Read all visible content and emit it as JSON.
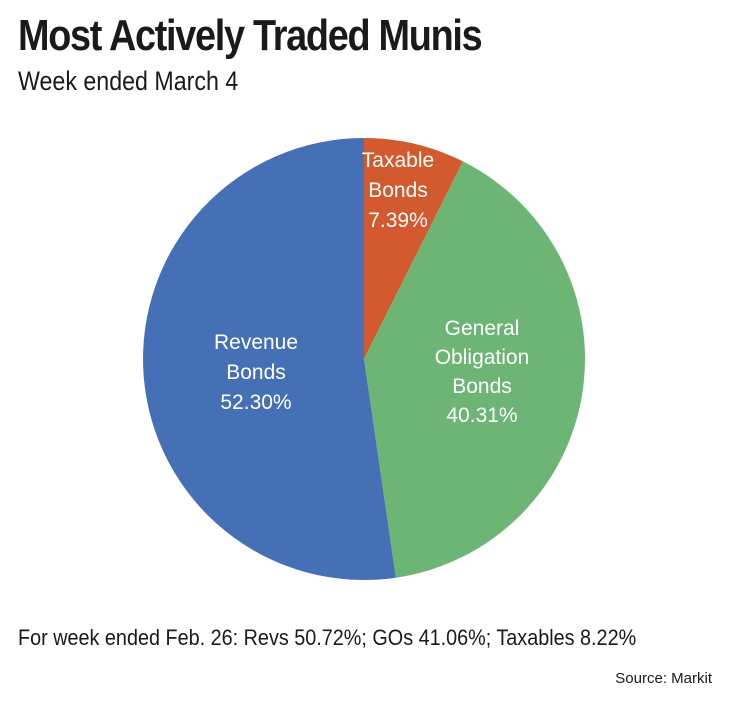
{
  "title": "Most Actively Traded Munis",
  "subtitle": "Week ended March 4",
  "footnote": "For week ended Feb. 26: Revs 50.72%; GOs 41.06%; Taxables 8.22%",
  "source": "Source: Markit",
  "chart_data": {
    "type": "pie",
    "title": "Most Actively Traded Munis",
    "subtitle": "Week ended March 4",
    "slices": [
      {
        "name": "Taxable Bonds",
        "label_lines": [
          "Taxable",
          "Bonds",
          "7.39%"
        ],
        "value": 7.39,
        "color": "#d35a2e"
      },
      {
        "name": "General Obligation Bonds",
        "label_lines": [
          "General",
          "Obligation",
          "Bonds",
          "40.31%"
        ],
        "value": 40.31,
        "color": "#6db574"
      },
      {
        "name": "Revenue Bonds",
        "label_lines": [
          "Revenue",
          "Bonds",
          "52.30%"
        ],
        "value": 52.3,
        "color": "#4670b5"
      }
    ]
  }
}
